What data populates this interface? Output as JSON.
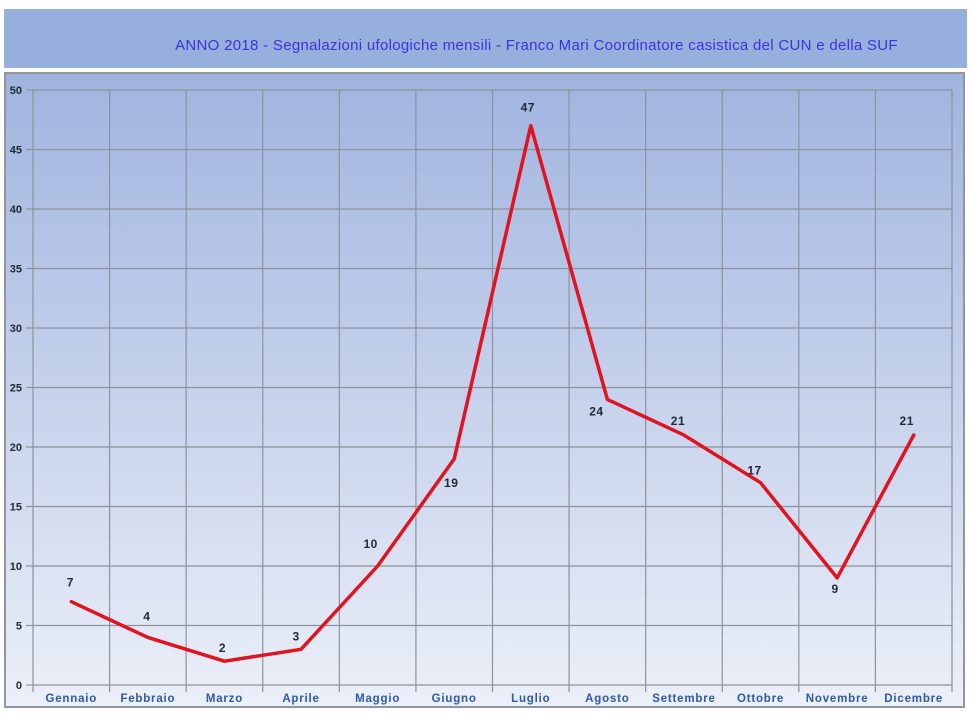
{
  "title": "ANNO 2018  - Segnalazioni ufologiche mensili -  Franco Mari  Coordinatore casistica del CUN e della SUF",
  "colors": {
    "header_band": "#97AFDD",
    "title_text": "#3B35D8",
    "plot_gradient_top": "#A0B4DF",
    "plot_gradient_bottom": "#EBEFF8",
    "gridline": "#8C939C",
    "series_line": "#E21320",
    "x_label": "#2F5AA5",
    "y_label": "#212A35",
    "data_label": "#212A35",
    "panel_border": "#8F969D"
  },
  "chart_data": {
    "type": "line",
    "title": "ANNO 2018  - Segnalazioni ufologiche mensili -  Franco Mari  Coordinatore casistica del CUN e della SUF",
    "categories": [
      "Gennaio",
      "Febbraio",
      "Marzo",
      "Aprile",
      "Maggio",
      "Giugno",
      "Luglio",
      "Agosto",
      "Settembre",
      "Ottobre",
      "Novembre",
      "Dicembre"
    ],
    "values": [
      7,
      4,
      2,
      3,
      10,
      19,
      47,
      24,
      21,
      17,
      9,
      21
    ],
    "xlabel": "",
    "ylabel": "",
    "ylim": [
      0,
      50
    ],
    "yticks": [
      0,
      5,
      10,
      15,
      20,
      25,
      30,
      35,
      40,
      45,
      50
    ],
    "grid": true,
    "legend_position": "none",
    "series_color": "#E21320",
    "data_labels_shown": true
  }
}
